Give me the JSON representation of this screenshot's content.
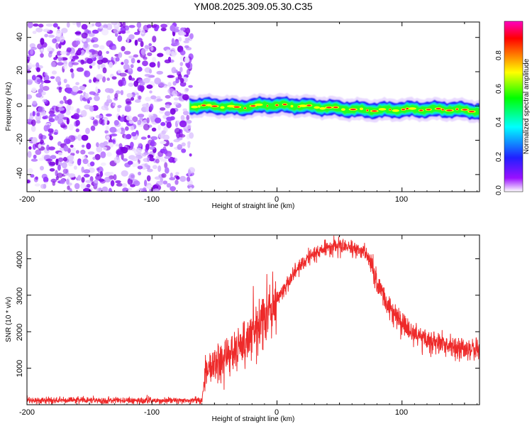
{
  "title": "YM08.2025.309.05.30.C35",
  "chart_data": [
    {
      "type": "heatmap",
      "title": "YM08.2025.309.05.30.C35",
      "xlabel": "Height of straight line (km)",
      "ylabel": "Frequency (Hz)",
      "xlim": [
        -200,
        162
      ],
      "ylim": [
        -50,
        49
      ],
      "xticks": [
        "-200",
        "-100",
        "0",
        "100"
      ],
      "yticks": [
        "40",
        "20",
        "0",
        "-20",
        "-40"
      ],
      "colorbar": {
        "label": "Normalized spectral amplitude",
        "range": [
          0,
          1
        ],
        "ticks": [
          "0.0",
          "0.2",
          "0.4",
          "0.6",
          "0.8"
        ],
        "colors": [
          "#ffffff",
          "#9a10ff",
          "#2020ff",
          "#00ffff",
          "#00ff00",
          "#ffff00",
          "#ff8000",
          "#ff0000",
          "#ff00c0"
        ]
      },
      "noise_region_x": [
        -200,
        -68
      ],
      "signal_band": [
        {
          "x": -70,
          "freq": 0
        },
        {
          "x": -50,
          "freq": 0
        },
        {
          "x": -30,
          "freq": -1
        },
        {
          "x": -10,
          "freq": 0.5
        },
        {
          "x": 0,
          "freq": 0.5
        },
        {
          "x": 20,
          "freq": 0
        },
        {
          "x": 40,
          "freq": -1
        },
        {
          "x": 60,
          "freq": -2
        },
        {
          "x": 80,
          "freq": -2.5
        },
        {
          "x": 100,
          "freq": -2
        },
        {
          "x": 120,
          "freq": -2
        },
        {
          "x": 140,
          "freq": -2
        },
        {
          "x": 162,
          "freq": -3
        }
      ]
    },
    {
      "type": "line",
      "xlabel": "Height of straight line (km)",
      "ylabel": "SNR (10 * v/v)",
      "xlim": [
        -200,
        162
      ],
      "ylim": [
        0,
        4650
      ],
      "xticks": [
        "-200",
        "-100",
        "0",
        "100"
      ],
      "yticks": [
        "1000",
        "2000",
        "3000",
        "4000"
      ],
      "color": "#ee2a2a",
      "series": [
        {
          "name": "SNR",
          "x": [
            -200,
            -150,
            -100,
            -60,
            -57,
            -50,
            -40,
            -30,
            -20,
            -10,
            0,
            10,
            20,
            30,
            40,
            50,
            60,
            70,
            75,
            80,
            90,
            100,
            110,
            120,
            130,
            140,
            150,
            162
          ],
          "values": [
            120,
            120,
            110,
            120,
            900,
            1150,
            1350,
            1600,
            1900,
            2450,
            2900,
            3400,
            3850,
            4150,
            4300,
            4350,
            4300,
            4200,
            3900,
            3300,
            2650,
            2200,
            1950,
            1800,
            1700,
            1600,
            1500,
            1450
          ]
        }
      ]
    }
  ]
}
